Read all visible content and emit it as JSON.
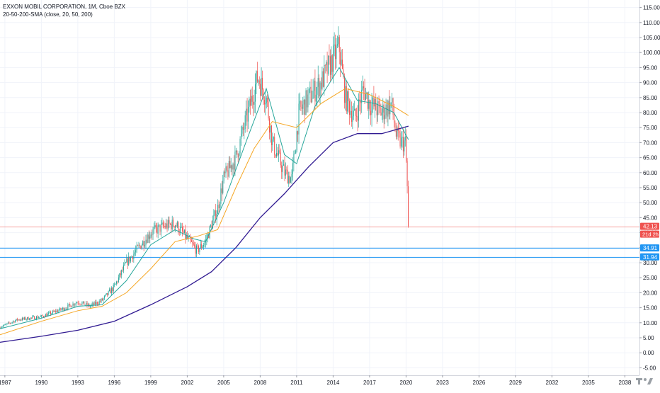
{
  "chart_data": {
    "type": "candlestick",
    "title": "EXXON MOBIL CORPORATION, 1M, Cboe BZX",
    "indicator": "20-50-200-SMA (close, 20, 50, 200)",
    "ylim": [
      -7.5,
      117.5
    ],
    "xlim": [
      1986.6,
      2039.2
    ],
    "y_ticks": [
      "115.00",
      "110.00",
      "105.00",
      "100.00",
      "95.00",
      "90.00",
      "85.00",
      "80.00",
      "75.00",
      "70.00",
      "65.00",
      "60.00",
      "55.00",
      "50.00",
      "45.00",
      "40.00",
      "35.00",
      "30.00",
      "25.00",
      "20.00",
      "15.00",
      "10.00",
      "5.00",
      "0.00",
      "-5.00"
    ],
    "x_ticks": [
      "1987",
      "1990",
      "1993",
      "1996",
      "1999",
      "2002",
      "2005",
      "2008",
      "2011",
      "2014",
      "2017",
      "2020",
      "2023",
      "2026",
      "2029",
      "2032",
      "2035",
      "2038"
    ],
    "price_path": [
      [
        1986.6,
        8.5
      ],
      [
        1988.0,
        11.0
      ],
      [
        1990.0,
        12.0
      ],
      [
        1992.0,
        15.0
      ],
      [
        1993.0,
        17.0
      ],
      [
        1994.0,
        15.5
      ],
      [
        1995.0,
        17.5
      ],
      [
        1996.0,
        22.0
      ],
      [
        1997.0,
        30.0
      ],
      [
        1998.0,
        35.0
      ],
      [
        1999.0,
        40.0
      ],
      [
        2000.0,
        42.0
      ],
      [
        2001.0,
        43.0
      ],
      [
        2002.0,
        38.0
      ],
      [
        2002.8,
        34.0
      ],
      [
        2003.5,
        37.0
      ],
      [
        2004.5,
        48.0
      ],
      [
        2005.0,
        58.0
      ],
      [
        2006.0,
        65.0
      ],
      [
        2007.0,
        80.0
      ],
      [
        2007.8,
        92.0
      ],
      [
        2008.5,
        85.0
      ],
      [
        2009.0,
        70.0
      ],
      [
        2010.0,
        60.0
      ],
      [
        2010.6,
        58.0
      ],
      [
        2011.2,
        80.0
      ],
      [
        2012.0,
        85.0
      ],
      [
        2013.0,
        90.0
      ],
      [
        2014.0,
        98.0
      ],
      [
        2014.5,
        102.0
      ],
      [
        2015.0,
        85.0
      ],
      [
        2015.8,
        78.0
      ],
      [
        2016.5,
        88.0
      ],
      [
        2017.0,
        83.0
      ],
      [
        2018.0,
        80.0
      ],
      [
        2018.8,
        83.0
      ],
      [
        2019.2,
        72.0
      ],
      [
        2019.6,
        70.0
      ],
      [
        2019.95,
        70.0
      ],
      [
        2020.1,
        55.0
      ],
      [
        2020.2,
        42.13
      ]
    ],
    "series": [
      {
        "name": "SMA 20",
        "color": "#26a69a",
        "values": [
          [
            1986.6,
            8.0
          ],
          [
            1990,
            11.5
          ],
          [
            1993,
            15.5
          ],
          [
            1995,
            16.0
          ],
          [
            1997,
            24.0
          ],
          [
            1999,
            36.0
          ],
          [
            2001,
            41.0
          ],
          [
            2002.5,
            38.0
          ],
          [
            2003.5,
            37.0
          ],
          [
            2005,
            50.0
          ],
          [
            2007,
            72.0
          ],
          [
            2008.5,
            88.0
          ],
          [
            2010,
            66.0
          ],
          [
            2011,
            63.0
          ],
          [
            2012.5,
            82.0
          ],
          [
            2014.5,
            95.0
          ],
          [
            2016,
            84.0
          ],
          [
            2017.5,
            83.0
          ],
          [
            2019,
            80.0
          ],
          [
            2020.2,
            71.0
          ]
        ]
      },
      {
        "name": "SMA 50",
        "color": "#f5a623",
        "values": [
          [
            1986.6,
            6.0
          ],
          [
            1990,
            10.5
          ],
          [
            1993,
            14.0
          ],
          [
            1995,
            15.5
          ],
          [
            1997,
            20.0
          ],
          [
            1999,
            28.0
          ],
          [
            2001,
            37.0
          ],
          [
            2003,
            39.0
          ],
          [
            2004.5,
            41.0
          ],
          [
            2006,
            55.0
          ],
          [
            2007.5,
            68.0
          ],
          [
            2009,
            77.0
          ],
          [
            2011,
            75.0
          ],
          [
            2013,
            83.0
          ],
          [
            2015,
            88.0
          ],
          [
            2017,
            86.0
          ],
          [
            2019,
            82.0
          ],
          [
            2020.2,
            79.0
          ]
        ]
      },
      {
        "name": "SMA 200",
        "color": "#311b92",
        "values": [
          [
            1986.6,
            3.5
          ],
          [
            1990,
            5.5
          ],
          [
            1993,
            7.5
          ],
          [
            1996,
            10.5
          ],
          [
            1999,
            16.0
          ],
          [
            2002,
            22.0
          ],
          [
            2004,
            27.0
          ],
          [
            2006,
            35.0
          ],
          [
            2008,
            45.0
          ],
          [
            2010,
            53.0
          ],
          [
            2012,
            62.0
          ],
          [
            2014,
            70.0
          ],
          [
            2016,
            73.0
          ],
          [
            2018,
            73.0
          ],
          [
            2020.2,
            75.5
          ]
        ]
      }
    ],
    "levels": [
      {
        "value": 42.13,
        "label": "42.13",
        "sublabel": "21d 2h",
        "color": "#ef5350",
        "style": "price"
      },
      {
        "value": 34.91,
        "label": "34.91",
        "color": "#2196f3",
        "style": "hline"
      },
      {
        "value": 31.94,
        "label": "31.94",
        "color": "#2196f3",
        "style": "hline"
      }
    ],
    "colors": {
      "up": "#26a69a",
      "down": "#ef5350",
      "grid": "#f0f3fa",
      "axis_text": "#131722"
    },
    "grid": true
  }
}
